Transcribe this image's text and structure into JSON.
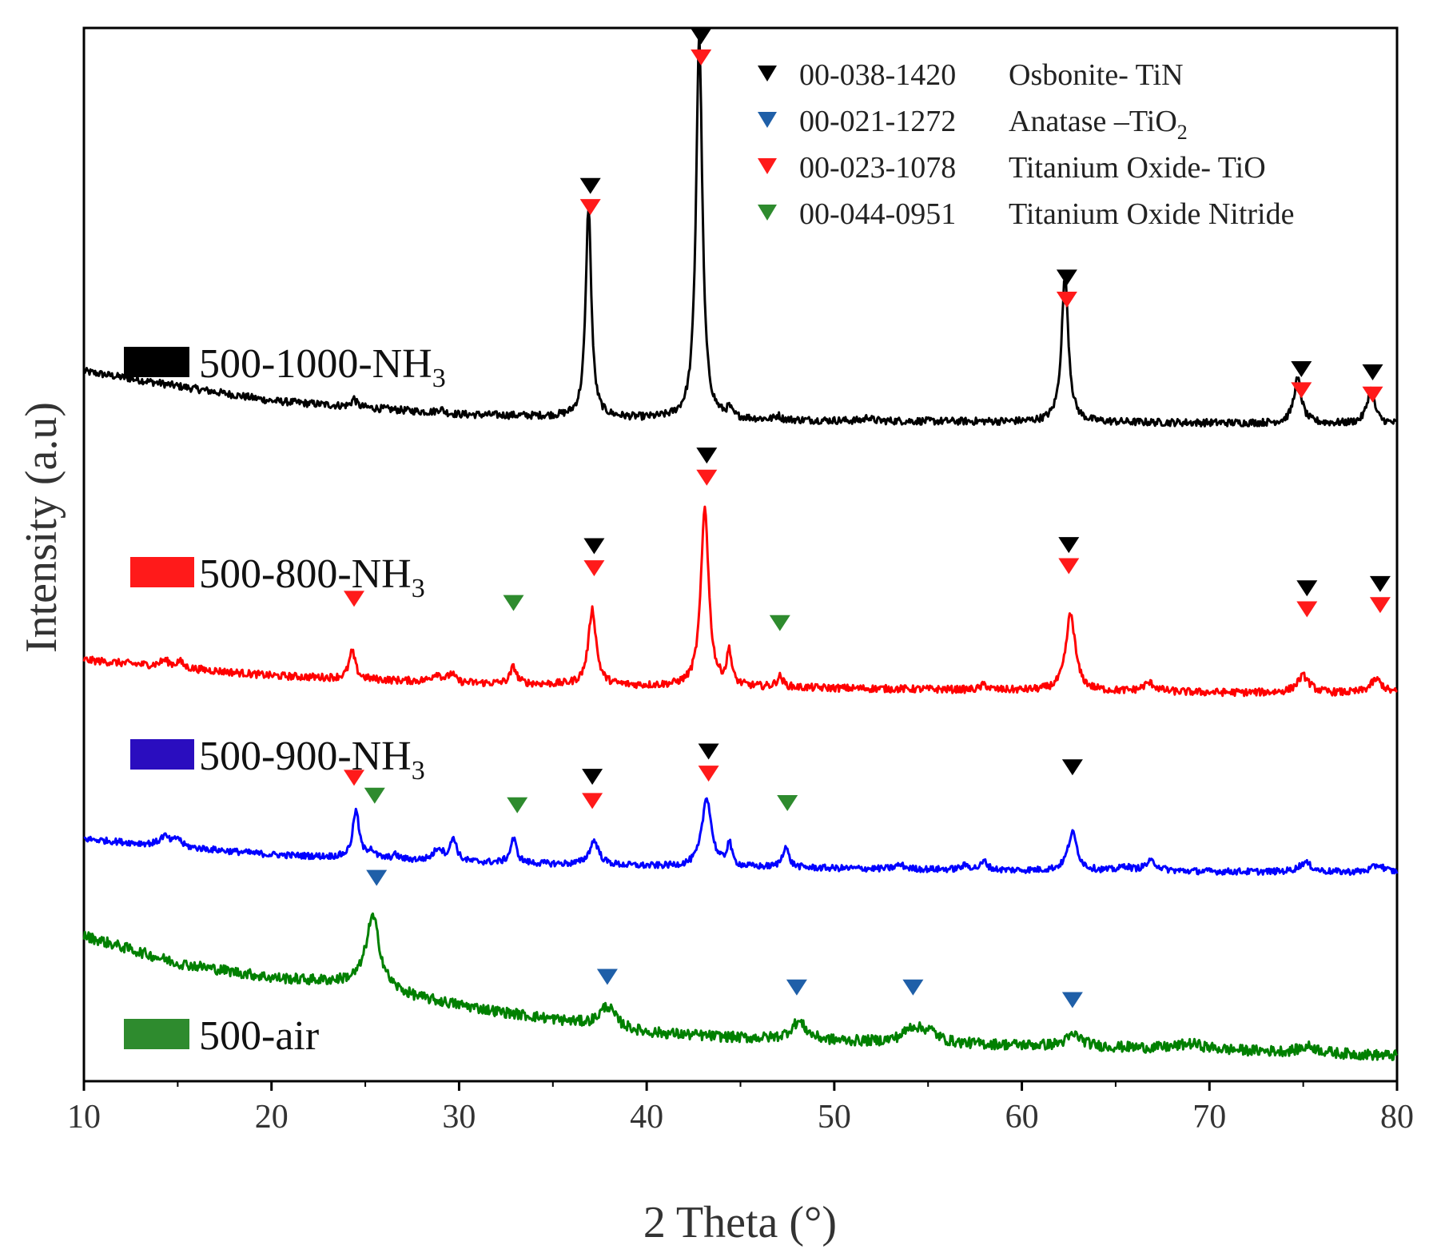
{
  "chart_data": {
    "type": "line",
    "title": "",
    "xlabel": "2 Theta (°)",
    "ylabel": "Intensity (a.u)",
    "xlim": [
      10,
      80
    ],
    "ylim": [
      0,
      100
    ],
    "xticks": [
      "10",
      "20",
      "30",
      "40",
      "50",
      "60",
      "70",
      "80"
    ],
    "yticks_shown": false,
    "grid": false,
    "legend": {
      "placement": "top-right",
      "entries": [
        {
          "code": "00-038-1420",
          "name": "Osbonite- TiN",
          "color": "#000000"
        },
        {
          "code": "00-021-1272",
          "name": "Anatase –TiO",
          "subscript": "2",
          "color": "#1f5fa8"
        },
        {
          "code": "00-023-1078",
          "name": "Titanium Oxide- TiO",
          "color": "#ff1a1a"
        },
        {
          "code": "00-044-0951",
          "name": "Titanium Oxide Nitride",
          "color": "#2e8b2e"
        }
      ]
    },
    "series": [
      {
        "name": "500-1000-NH3",
        "label_main": "500-1000-NH",
        "label_sub": "3",
        "color": "#000000",
        "baseline": [
          [
            10,
            67.4
          ],
          [
            20,
            64.6
          ],
          [
            30,
            63.3
          ],
          [
            40,
            62.9
          ],
          [
            50,
            62.7
          ],
          [
            60,
            62.6
          ],
          [
            70,
            62.5
          ],
          [
            80,
            62.4
          ]
        ],
        "peaks": [
          {
            "x": 24.4,
            "h": 0.8,
            "w": 0.15
          },
          {
            "x": 29.0,
            "h": 0.4,
            "w": 0.2
          },
          {
            "x": 36.9,
            "h": 20.0,
            "w": 0.18
          },
          {
            "x": 42.8,
            "h": 36.5,
            "w": 0.2
          },
          {
            "x": 44.4,
            "h": 0.8,
            "w": 0.15
          },
          {
            "x": 47.0,
            "h": 0.4,
            "w": 0.15
          },
          {
            "x": 51.8,
            "h": 0.4,
            "w": 0.15
          },
          {
            "x": 62.3,
            "h": 13.8,
            "w": 0.22
          },
          {
            "x": 74.7,
            "h": 4.2,
            "w": 0.25
          },
          {
            "x": 78.6,
            "h": 3.2,
            "w": 0.25
          }
        ],
        "noise": 0.35
      },
      {
        "name": "500-800-NH3",
        "label_main": "500-800-NH",
        "label_sub": "3",
        "color": "#ff0000",
        "baseline": [
          [
            10,
            40.0
          ],
          [
            20,
            38.5
          ],
          [
            30,
            37.8
          ],
          [
            40,
            37.5
          ],
          [
            50,
            37.3
          ],
          [
            60,
            37.1
          ],
          [
            70,
            36.9
          ],
          [
            80,
            36.8
          ]
        ],
        "peaks": [
          {
            "x": 14.3,
            "h": 0.6,
            "w": 0.3
          },
          {
            "x": 15.1,
            "h": 0.6,
            "w": 0.2
          },
          {
            "x": 24.3,
            "h": 2.6,
            "w": 0.2
          },
          {
            "x": 28.8,
            "h": 0.8,
            "w": 0.3
          },
          {
            "x": 29.6,
            "h": 0.8,
            "w": 0.2
          },
          {
            "x": 32.9,
            "h": 1.6,
            "w": 0.2
          },
          {
            "x": 37.1,
            "h": 7.2,
            "w": 0.25
          },
          {
            "x": 43.1,
            "h": 17.0,
            "w": 0.25
          },
          {
            "x": 44.4,
            "h": 3.2,
            "w": 0.15
          },
          {
            "x": 47.1,
            "h": 1.0,
            "w": 0.2
          },
          {
            "x": 58.0,
            "h": 0.5,
            "w": 0.2
          },
          {
            "x": 62.6,
            "h": 7.3,
            "w": 0.3
          },
          {
            "x": 66.8,
            "h": 0.8,
            "w": 0.4
          },
          {
            "x": 75.0,
            "h": 1.6,
            "w": 0.4
          },
          {
            "x": 78.9,
            "h": 1.3,
            "w": 0.4
          }
        ],
        "noise": 0.35
      },
      {
        "name": "500-900-NH3",
        "label_main": "500-900-NH",
        "label_sub": "3",
        "color": "#0000ff",
        "baseline": [
          [
            10,
            23.0
          ],
          [
            20,
            21.5
          ],
          [
            30,
            20.8
          ],
          [
            40,
            20.4
          ],
          [
            50,
            20.2
          ],
          [
            60,
            20.0
          ],
          [
            70,
            19.9
          ],
          [
            80,
            19.8
          ]
        ],
        "peaks": [
          {
            "x": 14.3,
            "h": 0.9,
            "w": 0.3
          },
          {
            "x": 15.0,
            "h": 0.8,
            "w": 0.2
          },
          {
            "x": 24.5,
            "h": 4.5,
            "w": 0.2
          },
          {
            "x": 25.3,
            "h": 0.8,
            "w": 0.2
          },
          {
            "x": 26.6,
            "h": 0.4,
            "w": 0.2
          },
          {
            "x": 28.9,
            "h": 1.2,
            "w": 0.3
          },
          {
            "x": 29.7,
            "h": 2.2,
            "w": 0.2
          },
          {
            "x": 32.9,
            "h": 2.3,
            "w": 0.2
          },
          {
            "x": 37.2,
            "h": 2.3,
            "w": 0.3
          },
          {
            "x": 43.2,
            "h": 6.6,
            "w": 0.3
          },
          {
            "x": 44.4,
            "h": 2.2,
            "w": 0.15
          },
          {
            "x": 47.4,
            "h": 2.0,
            "w": 0.2
          },
          {
            "x": 53.5,
            "h": 0.4,
            "w": 0.3
          },
          {
            "x": 57.0,
            "h": 0.4,
            "w": 0.3
          },
          {
            "x": 58.0,
            "h": 0.8,
            "w": 0.2
          },
          {
            "x": 62.7,
            "h": 3.6,
            "w": 0.3
          },
          {
            "x": 65.5,
            "h": 0.4,
            "w": 0.3
          },
          {
            "x": 66.9,
            "h": 0.9,
            "w": 0.4
          },
          {
            "x": 75.1,
            "h": 0.9,
            "w": 0.4
          },
          {
            "x": 79.0,
            "h": 0.7,
            "w": 0.4
          }
        ],
        "noise": 0.3
      },
      {
        "name": "500-air",
        "label_main": "500-air",
        "label_sub": "",
        "color": "#008000",
        "baseline": [
          [
            10,
            13.8
          ],
          [
            15,
            11.2
          ],
          [
            20,
            9.8
          ],
          [
            24,
            9.3
          ],
          [
            28,
            7.8
          ],
          [
            32,
            6.6
          ],
          [
            36,
            5.6
          ],
          [
            40,
            4.6
          ],
          [
            45,
            4.1
          ],
          [
            50,
            3.8
          ],
          [
            55,
            3.6
          ],
          [
            60,
            3.4
          ],
          [
            65,
            3.2
          ],
          [
            70,
            3.0
          ],
          [
            75,
            2.7
          ],
          [
            80,
            2.4
          ]
        ],
        "peaks": [
          {
            "x": 25.4,
            "h": 6.8,
            "w": 0.45
          },
          {
            "x": 37.9,
            "h": 2.0,
            "w": 0.5
          },
          {
            "x": 48.1,
            "h": 1.7,
            "w": 0.5
          },
          {
            "x": 54.2,
            "h": 1.4,
            "w": 0.6
          },
          {
            "x": 55.1,
            "h": 0.9,
            "w": 0.5
          },
          {
            "x": 62.8,
            "h": 1.1,
            "w": 0.5
          },
          {
            "x": 69.0,
            "h": 0.5,
            "w": 0.8
          },
          {
            "x": 75.3,
            "h": 0.6,
            "w": 0.6
          }
        ],
        "noise": 0.5
      }
    ],
    "markers": [
      {
        "x": 42.9,
        "y": 99.2,
        "color": "#000000"
      },
      {
        "x": 42.9,
        "y": 97.2,
        "color": "#ff1a1a"
      },
      {
        "x": 37.0,
        "y": 85.0,
        "color": "#000000"
      },
      {
        "x": 37.0,
        "y": 83.0,
        "color": "#ff1a1a"
      },
      {
        "x": 62.4,
        "y": 76.3,
        "color": "#000000"
      },
      {
        "x": 62.4,
        "y": 74.2,
        "color": "#ff1a1a"
      },
      {
        "x": 74.9,
        "y": 67.6,
        "color": "#000000"
      },
      {
        "x": 74.9,
        "y": 65.6,
        "color": "#ff1a1a"
      },
      {
        "x": 78.7,
        "y": 67.3,
        "color": "#000000"
      },
      {
        "x": 78.7,
        "y": 65.2,
        "color": "#ff1a1a"
      },
      {
        "x": 43.2,
        "y": 59.4,
        "color": "#000000"
      },
      {
        "x": 43.2,
        "y": 57.3,
        "color": "#ff1a1a"
      },
      {
        "x": 37.2,
        "y": 50.8,
        "color": "#000000"
      },
      {
        "x": 37.2,
        "y": 48.7,
        "color": "#ff1a1a"
      },
      {
        "x": 62.5,
        "y": 50.9,
        "color": "#000000"
      },
      {
        "x": 62.5,
        "y": 48.9,
        "color": "#ff1a1a"
      },
      {
        "x": 75.2,
        "y": 46.8,
        "color": "#000000"
      },
      {
        "x": 75.2,
        "y": 44.8,
        "color": "#ff1a1a"
      },
      {
        "x": 79.1,
        "y": 47.2,
        "color": "#000000"
      },
      {
        "x": 79.1,
        "y": 45.2,
        "color": "#ff1a1a"
      },
      {
        "x": 24.4,
        "y": 45.8,
        "color": "#ff1a1a"
      },
      {
        "x": 32.9,
        "y": 45.4,
        "color": "#2e8b2e"
      },
      {
        "x": 47.1,
        "y": 43.5,
        "color": "#2e8b2e"
      },
      {
        "x": 43.3,
        "y": 31.3,
        "color": "#000000"
      },
      {
        "x": 43.3,
        "y": 29.2,
        "color": "#ff1a1a"
      },
      {
        "x": 37.1,
        "y": 28.9,
        "color": "#000000"
      },
      {
        "x": 62.7,
        "y": 29.8,
        "color": "#000000"
      },
      {
        "x": 24.4,
        "y": 28.8,
        "color": "#ff1a1a"
      },
      {
        "x": 25.5,
        "y": 27.1,
        "color": "#2e8b2e"
      },
      {
        "x": 37.1,
        "y": 26.6,
        "color": "#ff1a1a"
      },
      {
        "x": 33.1,
        "y": 26.2,
        "color": "#2e8b2e"
      },
      {
        "x": 47.5,
        "y": 26.4,
        "color": "#2e8b2e"
      },
      {
        "x": 25.6,
        "y": 19.3,
        "color": "#1f5fa8"
      },
      {
        "x": 37.9,
        "y": 9.9,
        "color": "#1f5fa8"
      },
      {
        "x": 48.0,
        "y": 8.9,
        "color": "#1f5fa8"
      },
      {
        "x": 54.2,
        "y": 8.9,
        "color": "#1f5fa8"
      },
      {
        "x": 62.7,
        "y": 7.7,
        "color": "#1f5fa8"
      }
    ]
  }
}
